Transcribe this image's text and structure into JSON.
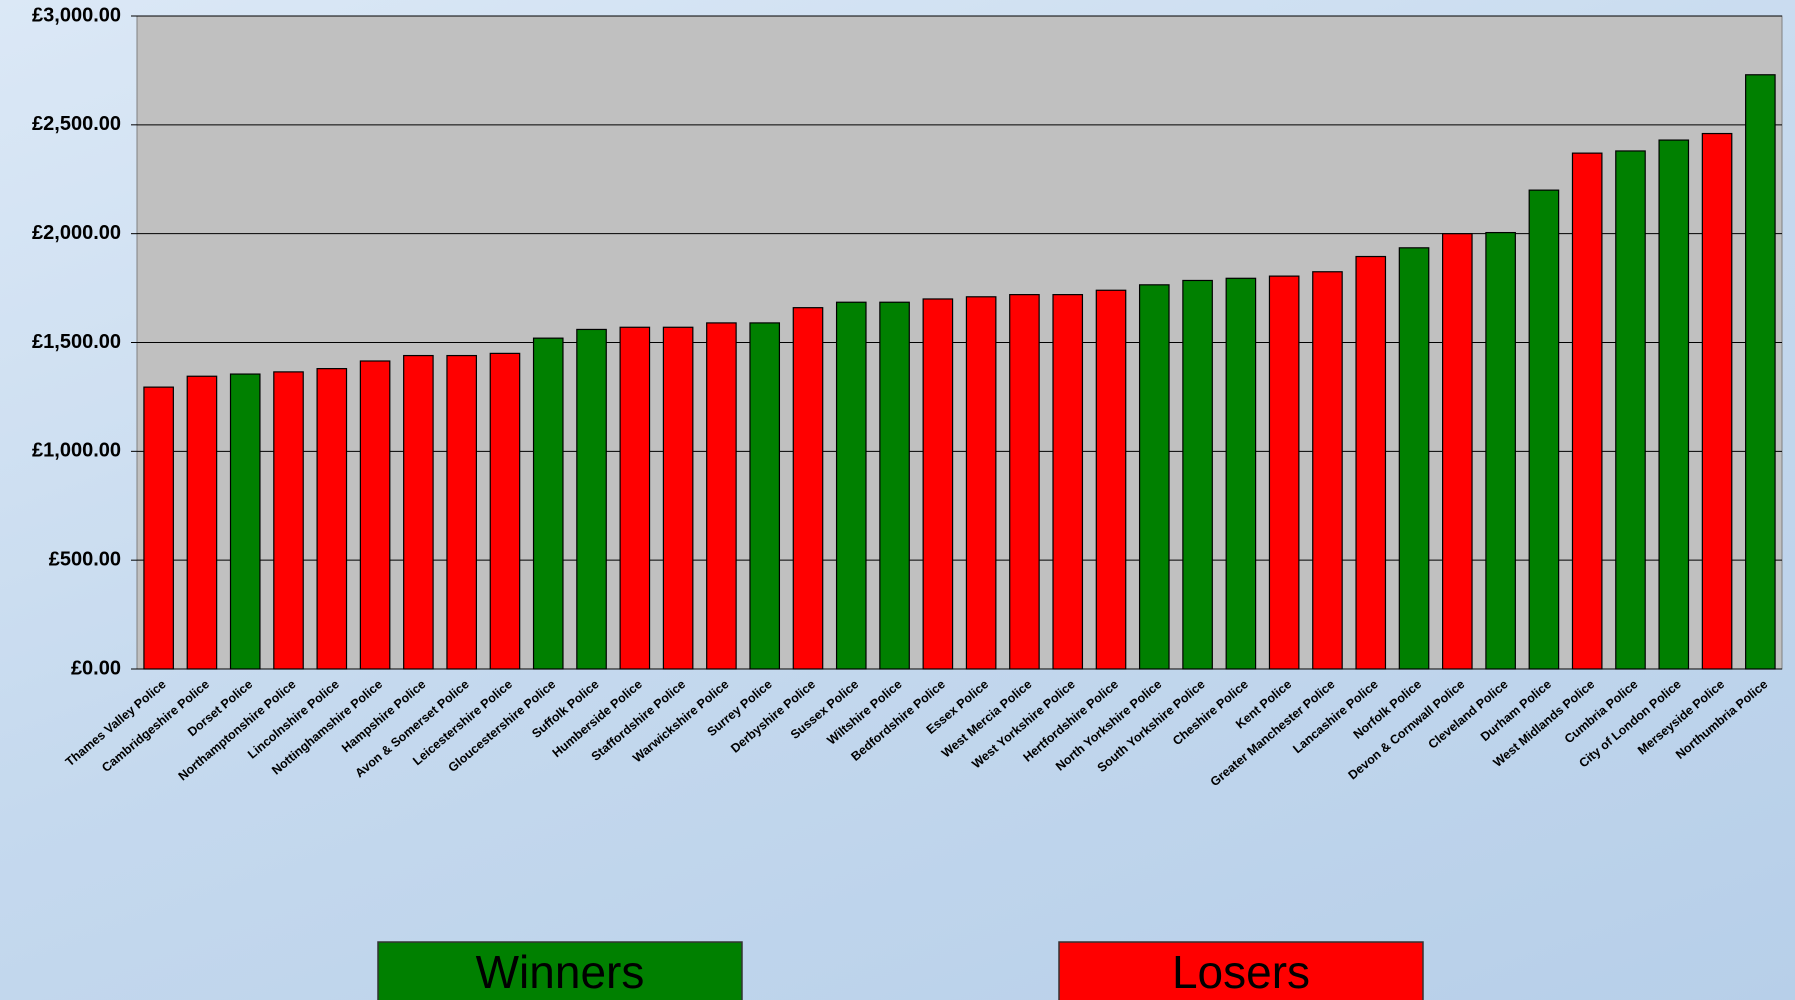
{
  "chart_data": {
    "type": "bar",
    "categories": [
      "Thames Valley Police",
      "Cambridgeshire Police",
      "Dorset Police",
      "Northamptonshire Police",
      "Lincolnshire Police",
      "Nottinghamshire Police",
      "Hampshire Police",
      "Avon & Somerset Police",
      "Leicestershire Police",
      "Gloucestershire Police",
      "Suffolk Police",
      "Humberside Police",
      "Staffordshire Police",
      "Warwickshire Police",
      "Surrey Police",
      "Derbyshire Police",
      "Sussex Police",
      "Wiltshire Police",
      "Bedfordshire Police",
      "Essex Police",
      "West Mercia Police",
      "West Yorkshire Police",
      "Hertfordshire Police",
      "North Yorkshire Police",
      "South Yorkshire Police",
      "Cheshire Police",
      "Kent Police",
      "Greater Manchester Police",
      "Lancashire Police",
      "Norfolk Police",
      "Devon & Cornwall Police",
      "Cleveland Police",
      "Durham Police",
      "West Midlands Police",
      "Cumbria Police",
      "City of London Police",
      "Merseyside Police",
      "Northumbria Police"
    ],
    "values": [
      1295,
      1345,
      1355,
      1365,
      1380,
      1415,
      1440,
      1440,
      1450,
      1520,
      1560,
      1570,
      1570,
      1590,
      1590,
      1660,
      1685,
      1685,
      1700,
      1710,
      1720,
      1720,
      1740,
      1765,
      1785,
      1795,
      1805,
      1825,
      1895,
      1935,
      2000,
      2005,
      2200,
      2370,
      2380,
      2430,
      2460,
      2730
    ],
    "colors": [
      "#ff0000",
      "#ff0000",
      "#008000",
      "#ff0000",
      "#ff0000",
      "#ff0000",
      "#ff0000",
      "#ff0000",
      "#ff0000",
      "#008000",
      "#008000",
      "#ff0000",
      "#ff0000",
      "#ff0000",
      "#008000",
      "#ff0000",
      "#008000",
      "#008000",
      "#ff0000",
      "#ff0000",
      "#ff0000",
      "#ff0000",
      "#ff0000",
      "#008000",
      "#008000",
      "#008000",
      "#ff0000",
      "#ff0000",
      "#ff0000",
      "#008000",
      "#ff0000",
      "#008000",
      "#008000",
      "#ff0000",
      "#008000",
      "#008000",
      "#ff0000",
      "#008000"
    ],
    "ylim": [
      0,
      3000
    ],
    "yticks": [
      {
        "value": 0,
        "label": "£0.00"
      },
      {
        "value": 500,
        "label": "£500.00"
      },
      {
        "value": 1000,
        "label": "£1,000.00"
      },
      {
        "value": 1500,
        "label": "£1,500.00"
      },
      {
        "value": 2000,
        "label": "£2,000.00"
      },
      {
        "value": 2500,
        "label": "£2,500.00"
      },
      {
        "value": 3000,
        "label": "£3,000.00"
      }
    ],
    "grid": true,
    "legend": [
      {
        "label": "Winners",
        "color": "#008000"
      },
      {
        "label": "Losers",
        "color": "#ff0000"
      }
    ]
  }
}
